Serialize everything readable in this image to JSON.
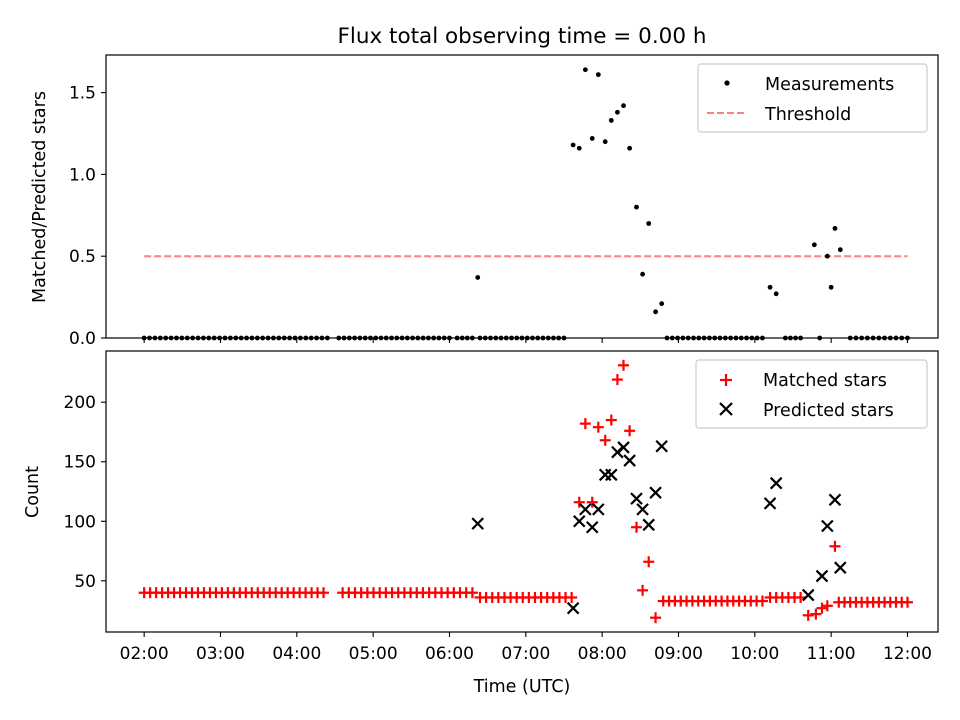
{
  "chart_data": {
    "title": "Flux total observing time = 0.00 h",
    "xlabel": "Time (UTC)",
    "xlim_hours": [
      1.5,
      12.4
    ],
    "xticks": [
      {
        "hour": 2,
        "label": "02:00"
      },
      {
        "hour": 3,
        "label": "03:00"
      },
      {
        "hour": 4,
        "label": "04:00"
      },
      {
        "hour": 5,
        "label": "05:00"
      },
      {
        "hour": 6,
        "label": "06:00"
      },
      {
        "hour": 7,
        "label": "07:00"
      },
      {
        "hour": 8,
        "label": "08:00"
      },
      {
        "hour": 9,
        "label": "09:00"
      },
      {
        "hour": 10,
        "label": "10:00"
      },
      {
        "hour": 11,
        "label": "11:00"
      },
      {
        "hour": 12,
        "label": "12:00"
      }
    ],
    "top": {
      "type": "scatter",
      "ylabel": "Matched/Predicted stars",
      "ylim": [
        0,
        1.73
      ],
      "yticks": [
        {
          "v": 0,
          "label": "0.0"
        },
        {
          "v": 0.5,
          "label": "0.5"
        },
        {
          "v": 1.0,
          "label": "1.0"
        },
        {
          "v": 1.5,
          "label": "1.5"
        }
      ],
      "legend": [
        "Measurements",
        "Threshold"
      ],
      "threshold": {
        "value": 0.5,
        "x_range": [
          2.0,
          12.0
        ],
        "color": "#ff7f7f"
      },
      "zeros": [
        {
          "x_range": [
            2.0,
            4.4
          ],
          "count": 35
        },
        {
          "x_range": [
            4.55,
            6.0
          ],
          "count": 22
        },
        {
          "x_range": [
            6.1,
            6.3
          ],
          "count": 4
        },
        {
          "x_range": [
            6.4,
            7.5
          ],
          "count": 17
        },
        {
          "x_range": [
            8.85,
            10.1
          ],
          "count": 19
        },
        {
          "x_range": [
            10.4,
            10.6
          ],
          "count": 4
        },
        {
          "x_range": [
            10.85,
            10.85
          ],
          "count": 1
        },
        {
          "x_range": [
            11.25,
            12.0
          ],
          "count": 11
        }
      ],
      "points": [
        [
          6.37,
          0.37
        ],
        [
          7.62,
          1.18
        ],
        [
          7.7,
          1.16
        ],
        [
          7.78,
          1.64
        ],
        [
          7.87,
          1.22
        ],
        [
          7.95,
          1.61
        ],
        [
          8.04,
          1.2
        ],
        [
          8.12,
          1.33
        ],
        [
          8.2,
          1.38
        ],
        [
          8.28,
          1.42
        ],
        [
          8.36,
          1.16
        ],
        [
          8.45,
          0.8
        ],
        [
          8.53,
          0.39
        ],
        [
          8.61,
          0.7
        ],
        [
          8.7,
          0.16
        ],
        [
          8.78,
          0.21
        ],
        [
          10.2,
          0.31
        ],
        [
          10.28,
          0.27
        ],
        [
          10.78,
          0.57
        ],
        [
          10.95,
          0.5
        ],
        [
          11.0,
          0.31
        ],
        [
          11.05,
          0.67
        ],
        [
          11.12,
          0.54
        ]
      ]
    },
    "bottom": {
      "type": "scatter",
      "ylabel": "Count",
      "ylim": [
        7,
        243
      ],
      "yticks": [
        {
          "v": 50,
          "label": "50"
        },
        {
          "v": 100,
          "label": "100"
        },
        {
          "v": 150,
          "label": "150"
        },
        {
          "v": 200,
          "label": "200"
        }
      ],
      "legend": [
        "Matched stars",
        "Predicted stars"
      ],
      "matched_color": "#ff0000",
      "predicted_color": "#000000",
      "matched_runs": [
        {
          "x_range": [
            2.0,
            4.35
          ],
          "count": 31,
          "value": 40
        },
        {
          "x_range": [
            4.6,
            6.3
          ],
          "count": 22,
          "value": 40
        },
        {
          "x_range": [
            6.4,
            7.6
          ],
          "count": 16,
          "value": 36
        },
        {
          "x_range": [
            8.8,
            10.1
          ],
          "count": 18,
          "value": 33
        },
        {
          "x_range": [
            10.2,
            10.6
          ],
          "count": 6,
          "value": 36
        },
        {
          "x_range": [
            11.1,
            12.0
          ],
          "count": 13,
          "value": 32
        }
      ],
      "matched_points": [
        [
          7.7,
          116
        ],
        [
          7.78,
          182
        ],
        [
          7.87,
          116
        ],
        [
          7.95,
          179
        ],
        [
          8.04,
          168
        ],
        [
          8.12,
          185
        ],
        [
          8.2,
          219
        ],
        [
          8.28,
          231
        ],
        [
          8.36,
          176
        ],
        [
          8.45,
          95
        ],
        [
          8.53,
          42
        ],
        [
          8.61,
          66
        ],
        [
          8.7,
          19
        ],
        [
          10.7,
          21
        ],
        [
          10.8,
          22
        ],
        [
          10.88,
          27
        ],
        [
          10.95,
          29
        ],
        [
          11.05,
          79
        ]
      ],
      "predicted_points": [
        [
          6.37,
          98
        ],
        [
          7.62,
          27
        ],
        [
          7.7,
          100
        ],
        [
          7.78,
          110
        ],
        [
          7.87,
          95
        ],
        [
          7.95,
          110
        ],
        [
          8.04,
          139
        ],
        [
          8.12,
          139
        ],
        [
          8.2,
          158
        ],
        [
          8.28,
          162
        ],
        [
          8.36,
          151
        ],
        [
          8.45,
          119
        ],
        [
          8.53,
          110
        ],
        [
          8.61,
          97
        ],
        [
          8.7,
          124
        ],
        [
          8.78,
          163
        ],
        [
          10.2,
          115
        ],
        [
          10.28,
          132
        ],
        [
          10.7,
          38
        ],
        [
          10.88,
          54
        ],
        [
          10.95,
          96
        ],
        [
          11.05,
          118
        ],
        [
          11.12,
          61
        ]
      ]
    }
  }
}
